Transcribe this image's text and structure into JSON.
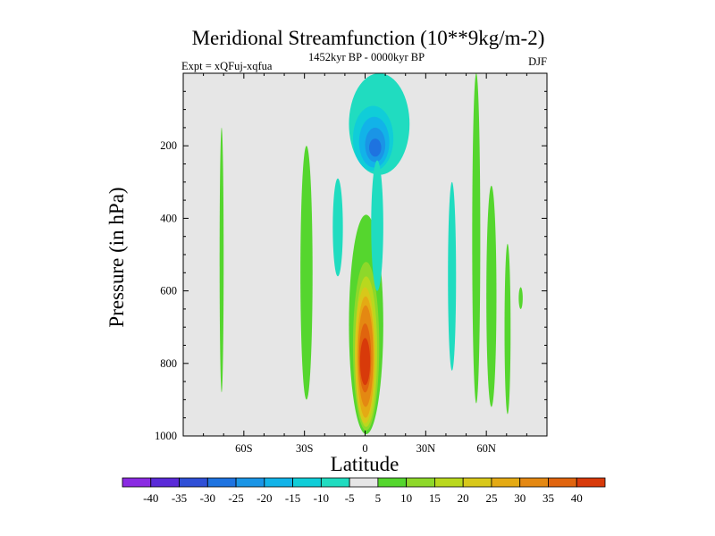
{
  "chart_data": {
    "type": "heatmap",
    "title": "Meridional Streamfunction (10**9kg/m-2)",
    "subtitle_left": "Expt = xQFuj-xqfua",
    "subtitle_center": "1452kyr BP - 0000kyr BP",
    "subtitle_right": "DJF",
    "xlabel": "Latitude",
    "ylabel": "Pressure (in hPa)",
    "xlim": [
      -90,
      90
    ],
    "ylim": [
      1000,
      0
    ],
    "xticks": [
      {
        "value": -60,
        "label": "60S"
      },
      {
        "value": -30,
        "label": "30S"
      },
      {
        "value": 0,
        "label": "0"
      },
      {
        "value": 30,
        "label": "30N"
      },
      {
        "value": 60,
        "label": "60N"
      }
    ],
    "yticks": [
      {
        "value": 200,
        "label": "200"
      },
      {
        "value": 400,
        "label": "400"
      },
      {
        "value": 600,
        "label": "600"
      },
      {
        "value": 800,
        "label": "800"
      },
      {
        "value": 1000,
        "label": "1000"
      }
    ],
    "background_color": "#e6e6e6",
    "colorbar": {
      "levels": [
        "-40",
        "-35",
        "-30",
        "-25",
        "-20",
        "-15",
        "-10",
        "-5",
        "5",
        "10",
        "15",
        "20",
        "25",
        "30",
        "35",
        "40"
      ],
      "colors": [
        "#8a2be2",
        "#5a2ad8",
        "#2f4fd6",
        "#1e73e0",
        "#1a95e6",
        "#12b3e8",
        "#10cdd8",
        "#20dcc0",
        "#e6e6e6",
        "#55d62e",
        "#8ed82a",
        "#b9d81e",
        "#d8c81a",
        "#e4aa14",
        "#e48812",
        "#e0640e",
        "#d83a0a"
      ]
    },
    "regions": [
      {
        "name": "positive-cell-equator",
        "bands": [
          {
            "level": 5,
            "x": [
              -8,
              9
            ],
            "y": [
              390,
              995
            ]
          },
          {
            "level": 10,
            "x": [
              -6,
              7
            ],
            "y": [
              520,
              985
            ]
          },
          {
            "level": 15,
            "x": [
              -5,
              6
            ],
            "y": [
              560,
              975
            ]
          },
          {
            "level": 20,
            "x": [
              -5,
              5
            ],
            "y": [
              590,
              965
            ]
          },
          {
            "level": 25,
            "x": [
              -4,
              4.5
            ],
            "y": [
              615,
              950
            ]
          },
          {
            "level": 30,
            "x": [
              -3.5,
              4
            ],
            "y": [
              640,
              920
            ]
          },
          {
            "level": 35,
            "x": [
              -3,
              3
            ],
            "y": [
              690,
              880
            ]
          },
          {
            "level": 40,
            "x": [
              -2.5,
              2.5
            ],
            "y": [
              730,
              860
            ]
          }
        ]
      },
      {
        "name": "negative-cell-upper",
        "bands": [
          {
            "level": -5,
            "x": [
              -8,
              22
            ],
            "y": [
              0,
              280
            ]
          },
          {
            "level": -10,
            "x": [
              -6,
              14
            ],
            "y": [
              90,
              270
            ]
          },
          {
            "level": -15,
            "x": [
              -3,
              12
            ],
            "y": [
              120,
              260
            ]
          },
          {
            "level": -20,
            "x": [
              0,
              10
            ],
            "y": [
              150,
              245
            ]
          },
          {
            "level": -25,
            "x": [
              2,
              8
            ],
            "y": [
              180,
              230
            ]
          }
        ]
      },
      {
        "name": "negative-tongue-lower",
        "bands": [
          {
            "level": -5,
            "x": [
              3,
              9
            ],
            "y": [
              240,
              600
            ]
          }
        ]
      },
      {
        "name": "green-streak-south",
        "bands": [
          {
            "level": 5,
            "x": [
              -32,
              -26
            ],
            "y": [
              200,
              900
            ]
          }
        ]
      },
      {
        "name": "cyan-streak-south",
        "bands": [
          {
            "level": -5,
            "x": [
              -16,
              -11
            ],
            "y": [
              290,
              560
            ]
          }
        ]
      },
      {
        "name": "green-line-60s",
        "bands": [
          {
            "level": 5,
            "x": [
              -72,
              -70
            ],
            "y": [
              150,
              880
            ]
          }
        ]
      },
      {
        "name": "cyan-streak-40n",
        "bands": [
          {
            "level": -5,
            "x": [
              41,
              45
            ],
            "y": [
              300,
              820
            ]
          }
        ]
      },
      {
        "name": "green-streaks-55n",
        "bands": [
          {
            "level": 5,
            "x": [
              53,
              57
            ],
            "y": [
              0,
              910
            ]
          },
          {
            "level": 5,
            "x": [
              60,
              65
            ],
            "y": [
              310,
              920
            ]
          }
        ]
      },
      {
        "name": "green-small-70n",
        "bands": [
          {
            "level": 5,
            "x": [
              69,
              72
            ],
            "y": [
              470,
              940
            ]
          },
          {
            "level": 5,
            "x": [
              76,
              78
            ],
            "y": [
              590,
              650
            ]
          }
        ]
      }
    ]
  }
}
